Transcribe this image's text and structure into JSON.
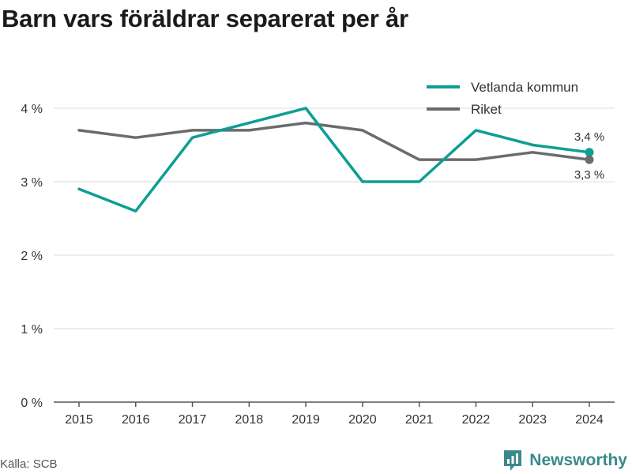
{
  "title": "Barn vars föräldrar separerat per år",
  "source": "Källa: SCB",
  "brand": {
    "name": "Newsworthy",
    "icon": "newsworthy-logo-icon"
  },
  "colors": {
    "primary": "#0d9e94",
    "secondary": "#6b6b6e",
    "grid": "#dcdcdc",
    "axis": "#555555",
    "text": "#333333",
    "brand": "#3a8a8c"
  },
  "chart_data": {
    "type": "line",
    "title": "Barn vars föräldrar separerat per år",
    "x": [
      "2015",
      "2016",
      "2017",
      "2018",
      "2019",
      "2020",
      "2021",
      "2022",
      "2023",
      "2024"
    ],
    "series": [
      {
        "name": "Vetlanda kommun",
        "color": "#0d9e94",
        "values": [
          2.9,
          2.6,
          3.6,
          3.8,
          4.0,
          3.0,
          3.0,
          3.7,
          3.5,
          3.4
        ],
        "end_label": "3,4 %"
      },
      {
        "name": "Riket",
        "color": "#6b6b6e",
        "values": [
          3.7,
          3.6,
          3.7,
          3.7,
          3.8,
          3.7,
          3.3,
          3.3,
          3.4,
          3.3
        ],
        "end_label": "3,3 %"
      }
    ],
    "yticks": [
      0,
      1,
      2,
      3,
      4
    ],
    "ytick_labels": [
      "0 %",
      "1 %",
      "2 %",
      "3 %",
      "4 %"
    ],
    "ylim": [
      0,
      4
    ],
    "xlabel": "",
    "ylabel": "",
    "grid": true,
    "legend_position": "top-right"
  }
}
